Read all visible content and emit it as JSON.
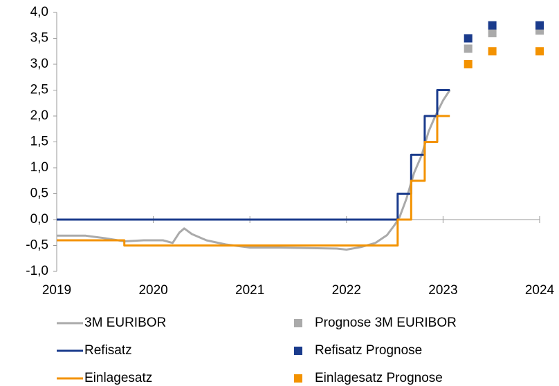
{
  "chart_data": {
    "type": "line",
    "xlim": [
      2019,
      2024
    ],
    "xticks": [
      2019,
      2020,
      2021,
      2022,
      2023,
      2024
    ],
    "ylim": [
      -1,
      4
    ],
    "yticks": [
      {
        "value": -1,
        "label": "-1,0"
      },
      {
        "value": -0.5,
        "label": "-0,5"
      },
      {
        "value": 0,
        "label": "0,0"
      },
      {
        "value": 0.5,
        "label": "0,5"
      },
      {
        "value": 1,
        "label": "1,0"
      },
      {
        "value": 1.5,
        "label": "1,5"
      },
      {
        "value": 2,
        "label": "2,0"
      },
      {
        "value": 2.5,
        "label": "2,5"
      },
      {
        "value": 3,
        "label": "3,0"
      },
      {
        "value": 3.5,
        "label": "3,5"
      },
      {
        "value": 4,
        "label": "4,0"
      }
    ],
    "grid": false,
    "legend": "bottom",
    "series": [
      {
        "name": "3M EURIBOR",
        "type": "line",
        "color": "#aaaaaa",
        "x": [
          2019.0,
          2019.3,
          2019.5,
          2019.7,
          2019.9,
          2020.1,
          2020.2,
          2020.27,
          2020.32,
          2020.4,
          2020.55,
          2020.75,
          2021.0,
          2021.3,
          2021.6,
          2021.9,
          2022.0,
          2022.15,
          2022.3,
          2022.42,
          2022.5,
          2022.55,
          2022.62,
          2022.7,
          2022.78,
          2022.85,
          2022.92,
          2023.0,
          2023.07
        ],
        "values": [
          -0.31,
          -0.31,
          -0.36,
          -0.42,
          -0.4,
          -0.4,
          -0.45,
          -0.25,
          -0.17,
          -0.28,
          -0.4,
          -0.48,
          -0.54,
          -0.54,
          -0.55,
          -0.56,
          -0.58,
          -0.53,
          -0.45,
          -0.3,
          -0.1,
          0.05,
          0.4,
          0.9,
          1.25,
          1.7,
          2.0,
          2.3,
          2.5
        ]
      },
      {
        "name": "Prognose 3M EURIBOR",
        "type": "scatter",
        "color": "#aaaaaa",
        "x": [
          2023.26,
          2023.51,
          2024.0
        ],
        "values": [
          3.3,
          3.6,
          3.65
        ]
      },
      {
        "name": "Refisatz",
        "type": "line",
        "color": "#1a3b8c",
        "x": [
          2019.0,
          2022.53,
          2022.53,
          2022.67,
          2022.67,
          2022.81,
          2022.81,
          2022.94,
          2022.94,
          2023.07
        ],
        "values": [
          0,
          0,
          0.5,
          0.5,
          1.25,
          1.25,
          2.0,
          2.0,
          2.5,
          2.5
        ]
      },
      {
        "name": "Refisatz Prognose",
        "type": "scatter",
        "color": "#1a3b8c",
        "x": [
          2023.26,
          2023.51,
          2024.0
        ],
        "values": [
          3.5,
          3.75,
          3.75
        ]
      },
      {
        "name": "Einlagesatz",
        "type": "line",
        "color": "#f39200",
        "x": [
          2019.0,
          2019.7,
          2019.7,
          2022.53,
          2022.53,
          2022.67,
          2022.67,
          2022.81,
          2022.81,
          2022.94,
          2022.94,
          2023.07
        ],
        "values": [
          -0.4,
          -0.4,
          -0.5,
          -0.5,
          0,
          0,
          0.75,
          0.75,
          1.5,
          1.5,
          2.0,
          2.0
        ]
      },
      {
        "name": "Einlagesatz Prognose",
        "type": "scatter",
        "color": "#f39200",
        "x": [
          2023.26,
          2023.51,
          2024.0
        ],
        "values": [
          3.0,
          3.25,
          3.25
        ]
      }
    ]
  }
}
